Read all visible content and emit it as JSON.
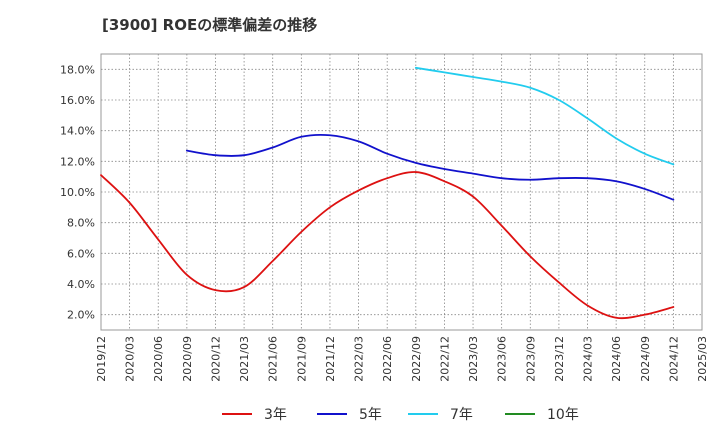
{
  "chart_data": {
    "type": "line",
    "title": "[3900]  ROEの標準偏差の推移",
    "xlabel": "",
    "ylabel": "",
    "ylim": [
      1.0,
      19.0
    ],
    "y_ticks": [
      "2.0%",
      "4.0%",
      "6.0%",
      "8.0%",
      "10.0%",
      "12.0%",
      "14.0%",
      "16.0%",
      "18.0%"
    ],
    "y_tick_values": [
      2,
      4,
      6,
      8,
      10,
      12,
      14,
      16,
      18
    ],
    "x_ticks": [
      "2019/12",
      "2020/03",
      "2020/06",
      "2020/09",
      "2020/12",
      "2021/03",
      "2021/06",
      "2021/09",
      "2021/12",
      "2022/03",
      "2022/06",
      "2022/09",
      "2022/12",
      "2023/03",
      "2023/06",
      "2023/09",
      "2023/12",
      "2024/03",
      "2024/06",
      "2024/09",
      "2024/12",
      "2025/03"
    ],
    "grid": true,
    "legend_position": "bottom",
    "series": [
      {
        "name": "3年",
        "color": "#dd1111",
        "values": [
          11.1,
          9.3,
          6.9,
          4.6,
          3.6,
          3.8,
          5.5,
          7.4,
          9.0,
          10.1,
          10.9,
          11.3,
          10.7,
          9.7,
          7.8,
          5.8,
          4.1,
          2.6,
          1.8,
          2.0,
          2.5,
          null
        ]
      },
      {
        "name": "5年",
        "color": "#1111cc",
        "values": [
          null,
          null,
          null,
          12.7,
          12.4,
          12.4,
          12.9,
          13.6,
          13.7,
          13.3,
          12.5,
          11.9,
          11.5,
          11.2,
          10.9,
          10.8,
          10.9,
          10.9,
          10.7,
          10.2,
          9.5,
          null
        ]
      },
      {
        "name": "7年",
        "color": "#22ccee",
        "values": [
          null,
          null,
          null,
          null,
          null,
          null,
          null,
          null,
          null,
          null,
          null,
          18.1,
          17.8,
          17.5,
          17.2,
          16.8,
          16.0,
          14.8,
          13.5,
          12.5,
          11.8,
          null
        ]
      },
      {
        "name": "10年",
        "color": "#228b22",
        "values": [
          null,
          null,
          null,
          null,
          null,
          null,
          null,
          null,
          null,
          null,
          null,
          null,
          null,
          null,
          null,
          null,
          null,
          null,
          null,
          null,
          null,
          null
        ]
      }
    ]
  }
}
